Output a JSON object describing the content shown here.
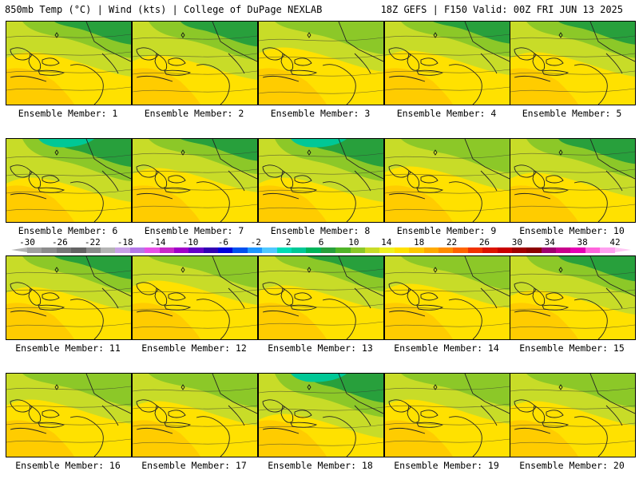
{
  "header": {
    "left": "850mb Temp (°C) | Wind (kts) | College of DuPage NEXLAB",
    "right": "18Z GEFS | F150 Valid: 00Z FRI JUN 13 2025"
  },
  "colorbar": {
    "labels": [
      "-30",
      "-26",
      "-22",
      "-18",
      "-14",
      "-10",
      "-6",
      "-2",
      "2",
      "6",
      "10",
      "14",
      "18",
      "22",
      "26",
      "30",
      "34",
      "38",
      "42"
    ],
    "colors": [
      "#a0a0a0",
      "#8c8c8c",
      "#787878",
      "#646464",
      "#8c8c8c",
      "#b4b4b4",
      "#c8a0e6",
      "#b478e6",
      "#e650e6",
      "#c828c8",
      "#a000c8",
      "#6400c8",
      "#3200b4",
      "#0000dc",
      "#0050f0",
      "#1e96ff",
      "#50c8ff",
      "#00dcb4",
      "#00c896",
      "#00b45a",
      "#28a03c",
      "#50b428",
      "#8cc828",
      "#c8dc28",
      "#f0f01e",
      "#ffe100",
      "#ffc800",
      "#ffaa00",
      "#ff8c00",
      "#ff6400",
      "#f03200",
      "#dc1400",
      "#c80000",
      "#a00000",
      "#8c0000",
      "#a0006e",
      "#c8008c",
      "#e600b4",
      "#ff64dc",
      "#ffa0f0"
    ],
    "left_arrow_color": "#b4b4b4",
    "right_arrow_color": "#ffc8f5"
  },
  "panels": [
    {
      "label": "Ensemble Member: 1",
      "cold": 0.35
    },
    {
      "label": "Ensemble Member: 2",
      "cold": 0.45
    },
    {
      "label": "Ensemble Member: 3",
      "cold": 0.2
    },
    {
      "label": "Ensemble Member: 4",
      "cold": 0.3
    },
    {
      "label": "Ensemble Member: 5",
      "cold": 0.35
    },
    {
      "label": "Ensemble Member: 6",
      "cold": 0.6
    },
    {
      "label": "Ensemble Member: 7",
      "cold": 0.3
    },
    {
      "label": "Ensemble Member: 8",
      "cold": 0.6
    },
    {
      "label": "Ensemble Member: 9",
      "cold": 0.25
    },
    {
      "label": "Ensemble Member: 10",
      "cold": 0.45
    },
    {
      "label": "Ensemble Member: 11",
      "cold": 0.35
    },
    {
      "label": "Ensemble Member: 12",
      "cold": 0.15
    },
    {
      "label": "Ensemble Member: 13",
      "cold": 0.3
    },
    {
      "label": "Ensemble Member: 14",
      "cold": 0.25
    },
    {
      "label": "Ensemble Member: 15",
      "cold": 0.45
    },
    {
      "label": "Ensemble Member: 16",
      "cold": 0.2
    },
    {
      "label": "Ensemble Member: 17",
      "cold": 0.25
    },
    {
      "label": "Ensemble Member: 18",
      "cold": 0.65
    },
    {
      "label": "Ensemble Member: 19",
      "cold": 0.2
    },
    {
      "label": "Ensemble Member: 20",
      "cold": 0.25
    }
  ]
}
